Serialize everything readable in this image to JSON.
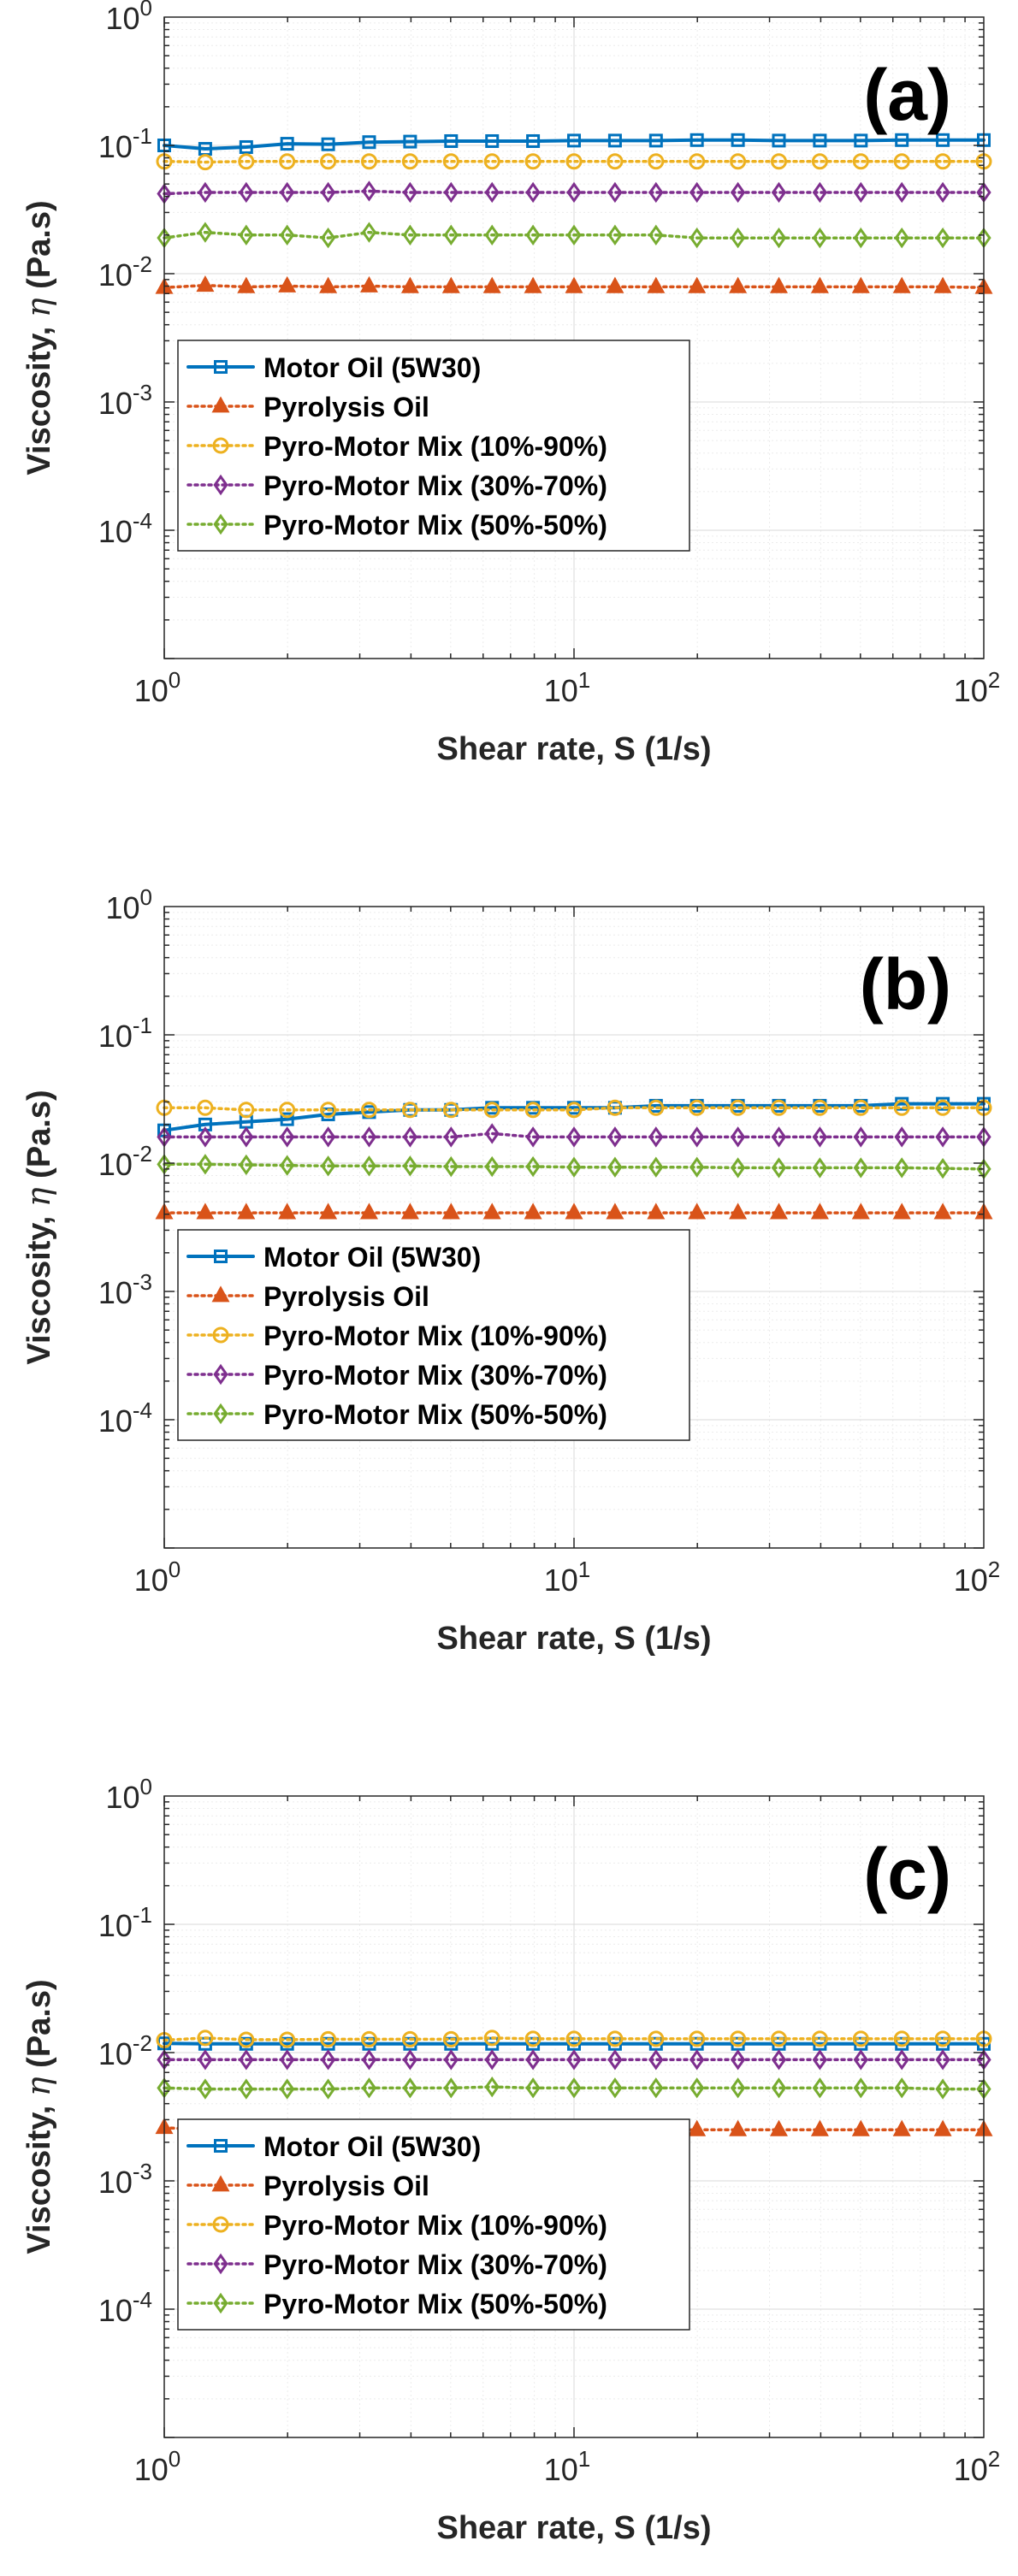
{
  "chart_data": [
    {
      "type": "line",
      "panel_label": "(a)",
      "xlabel": "Shear rate, S (1/s)",
      "ylabel_text": "Viscosity, ",
      "ylabel_symbol": "η",
      "ylabel_unit": " (Pa.s)",
      "xscale": "log",
      "yscale": "log",
      "xlim": [
        1,
        100
      ],
      "ylim": [
        1e-05,
        1
      ],
      "x_ticks": [
        {
          "base": "10",
          "exp": "0"
        },
        {
          "base": "10",
          "exp": "1"
        },
        {
          "base": "10",
          "exp": "2"
        }
      ],
      "y_ticks": [
        {
          "base": "10",
          "exp": "0"
        },
        {
          "base": "10",
          "exp": "-1"
        },
        {
          "base": "10",
          "exp": "-2"
        },
        {
          "base": "10",
          "exp": "-3"
        },
        {
          "base": "10",
          "exp": "-4"
        }
      ],
      "grid": true,
      "legend_position": "bottom-left",
      "x": [
        1,
        1.259,
        1.585,
        1.995,
        2.512,
        3.162,
        3.981,
        5.012,
        6.31,
        7.943,
        10,
        12.59,
        15.85,
        19.95,
        25.12,
        31.62,
        39.81,
        50.12,
        63.1,
        79.43,
        100
      ],
      "series": [
        {
          "name": "Motor Oil (5W30)",
          "color": "#0072BD",
          "marker": "square",
          "dash": "solid",
          "values": [
            0.1,
            0.094,
            0.097,
            0.103,
            0.102,
            0.106,
            0.107,
            0.108,
            0.108,
            0.108,
            0.109,
            0.109,
            0.109,
            0.11,
            0.11,
            0.109,
            0.109,
            0.109,
            0.11,
            0.11,
            0.11
          ]
        },
        {
          "name": "Pyrolysis Oil",
          "color": "#D95319",
          "marker": "triangle",
          "dash": "dotted",
          "values": [
            0.0078,
            0.0081,
            0.0079,
            0.008,
            0.0079,
            0.008,
            0.0079,
            0.0079,
            0.0079,
            0.0079,
            0.0079,
            0.0079,
            0.0079,
            0.0079,
            0.0079,
            0.0079,
            0.0079,
            0.0079,
            0.0079,
            0.0079,
            0.0078
          ]
        },
        {
          "name": "Pyro-Motor Mix (10%-90%)",
          "color": "#EDB120",
          "marker": "circle",
          "dash": "dotted",
          "values": [
            0.075,
            0.074,
            0.075,
            0.075,
            0.075,
            0.075,
            0.075,
            0.075,
            0.075,
            0.075,
            0.075,
            0.075,
            0.075,
            0.075,
            0.075,
            0.075,
            0.075,
            0.075,
            0.075,
            0.075,
            0.075
          ]
        },
        {
          "name": "Pyro-Motor Mix (30%-70%)",
          "color": "#7E2F8E",
          "marker": "diamond",
          "dash": "dotted",
          "values": [
            0.042,
            0.043,
            0.043,
            0.043,
            0.043,
            0.044,
            0.043,
            0.043,
            0.043,
            0.043,
            0.043,
            0.043,
            0.043,
            0.043,
            0.043,
            0.043,
            0.043,
            0.043,
            0.043,
            0.043,
            0.043
          ]
        },
        {
          "name": "Pyro-Motor Mix (50%-50%)",
          "color": "#77AC30",
          "marker": "diamond",
          "dash": "dotted",
          "values": [
            0.019,
            0.021,
            0.02,
            0.02,
            0.019,
            0.021,
            0.02,
            0.02,
            0.02,
            0.02,
            0.02,
            0.02,
            0.02,
            0.019,
            0.019,
            0.019,
            0.019,
            0.019,
            0.019,
            0.019,
            0.019
          ]
        }
      ]
    },
    {
      "type": "line",
      "panel_label": "(b)",
      "xlabel": "Shear rate, S (1/s)",
      "ylabel_text": "Viscosity, ",
      "ylabel_symbol": "η",
      "ylabel_unit": " (Pa.s)",
      "xscale": "log",
      "yscale": "log",
      "xlim": [
        1,
        100
      ],
      "ylim": [
        1e-05,
        1
      ],
      "x_ticks": [
        {
          "base": "10",
          "exp": "0"
        },
        {
          "base": "10",
          "exp": "1"
        },
        {
          "base": "10",
          "exp": "2"
        }
      ],
      "y_ticks": [
        {
          "base": "10",
          "exp": "0"
        },
        {
          "base": "10",
          "exp": "-1"
        },
        {
          "base": "10",
          "exp": "-2"
        },
        {
          "base": "10",
          "exp": "-3"
        },
        {
          "base": "10",
          "exp": "-4"
        }
      ],
      "grid": true,
      "legend_position": "bottom-left",
      "x": [
        1,
        1.259,
        1.585,
        1.995,
        2.512,
        3.162,
        3.981,
        5.012,
        6.31,
        7.943,
        10,
        12.59,
        15.85,
        19.95,
        25.12,
        31.62,
        39.81,
        50.12,
        63.1,
        79.43,
        100
      ],
      "series": [
        {
          "name": "Motor Oil (5W30)",
          "color": "#0072BD",
          "marker": "square",
          "dash": "solid",
          "values": [
            0.018,
            0.02,
            0.021,
            0.022,
            0.024,
            0.025,
            0.026,
            0.026,
            0.027,
            0.027,
            0.027,
            0.027,
            0.028,
            0.028,
            0.028,
            0.028,
            0.028,
            0.028,
            0.029,
            0.029,
            0.029
          ]
        },
        {
          "name": "Pyrolysis Oil",
          "color": "#D95319",
          "marker": "triangle",
          "dash": "dotted",
          "values": [
            0.0041,
            0.0041,
            0.0041,
            0.0041,
            0.0041,
            0.0041,
            0.0041,
            0.0041,
            0.0041,
            0.0041,
            0.0041,
            0.0041,
            0.0041,
            0.0041,
            0.0041,
            0.0041,
            0.0041,
            0.0041,
            0.0041,
            0.0041,
            0.0041
          ]
        },
        {
          "name": "Pyro-Motor Mix (10%-90%)",
          "color": "#EDB120",
          "marker": "circle",
          "dash": "dotted",
          "values": [
            0.027,
            0.027,
            0.026,
            0.026,
            0.026,
            0.026,
            0.026,
            0.026,
            0.026,
            0.026,
            0.026,
            0.027,
            0.027,
            0.027,
            0.027,
            0.027,
            0.027,
            0.027,
            0.027,
            0.027,
            0.027
          ]
        },
        {
          "name": "Pyro-Motor Mix (30%-70%)",
          "color": "#7E2F8E",
          "marker": "diamond",
          "dash": "dotted",
          "values": [
            0.016,
            0.016,
            0.016,
            0.016,
            0.016,
            0.016,
            0.016,
            0.016,
            0.017,
            0.016,
            0.016,
            0.016,
            0.016,
            0.016,
            0.016,
            0.016,
            0.016,
            0.016,
            0.016,
            0.016,
            0.016
          ]
        },
        {
          "name": "Pyro-Motor Mix (50%-50%)",
          "color": "#77AC30",
          "marker": "diamond",
          "dash": "dotted",
          "values": [
            0.0098,
            0.0098,
            0.0097,
            0.0096,
            0.0095,
            0.0095,
            0.0095,
            0.0094,
            0.0094,
            0.0094,
            0.0093,
            0.0093,
            0.0093,
            0.0093,
            0.0092,
            0.0092,
            0.0092,
            0.0092,
            0.0092,
            0.0091,
            0.009
          ]
        }
      ]
    },
    {
      "type": "line",
      "panel_label": "(c)",
      "xlabel": "Shear rate, S (1/s)",
      "ylabel_text": "Viscosity, ",
      "ylabel_symbol": "η",
      "ylabel_unit": " (Pa.s)",
      "xscale": "log",
      "yscale": "log",
      "xlim": [
        1,
        100
      ],
      "ylim": [
        1e-05,
        1
      ],
      "x_ticks": [
        {
          "base": "10",
          "exp": "0"
        },
        {
          "base": "10",
          "exp": "1"
        },
        {
          "base": "10",
          "exp": "2"
        }
      ],
      "y_ticks": [
        {
          "base": "10",
          "exp": "0"
        },
        {
          "base": "10",
          "exp": "-1"
        },
        {
          "base": "10",
          "exp": "-2"
        },
        {
          "base": "10",
          "exp": "-3"
        },
        {
          "base": "10",
          "exp": "-4"
        }
      ],
      "grid": true,
      "legend_position": "bottom-left",
      "x": [
        1,
        1.259,
        1.585,
        1.995,
        2.512,
        3.162,
        3.981,
        5.012,
        6.31,
        7.943,
        10,
        12.59,
        15.85,
        19.95,
        25.12,
        31.62,
        39.81,
        50.12,
        63.1,
        79.43,
        100
      ],
      "series": [
        {
          "name": "Motor Oil (5W30)",
          "color": "#0072BD",
          "marker": "square",
          "dash": "solid",
          "values": [
            0.0118,
            0.0117,
            0.0117,
            0.0117,
            0.0117,
            0.0117,
            0.0117,
            0.0117,
            0.0117,
            0.0117,
            0.0117,
            0.0117,
            0.0117,
            0.0117,
            0.0117,
            0.0117,
            0.0117,
            0.0117,
            0.0117,
            0.0117,
            0.0117
          ]
        },
        {
          "name": "Pyrolysis Oil",
          "color": "#D95319",
          "marker": "triangle",
          "dash": "dotted",
          "values": [
            0.0026,
            0.0025,
            0.0025,
            0.0025,
            0.0025,
            0.0025,
            0.0025,
            0.0025,
            0.0025,
            0.0025,
            0.0025,
            0.0025,
            0.0025,
            0.0025,
            0.0025,
            0.0025,
            0.0025,
            0.0025,
            0.0025,
            0.0025,
            0.0025
          ]
        },
        {
          "name": "Pyro-Motor Mix (10%-90%)",
          "color": "#EDB120",
          "marker": "circle",
          "dash": "dotted",
          "values": [
            0.0125,
            0.013,
            0.0126,
            0.0126,
            0.0127,
            0.0127,
            0.0127,
            0.0127,
            0.013,
            0.0128,
            0.0128,
            0.0128,
            0.0128,
            0.0128,
            0.0128,
            0.0128,
            0.0128,
            0.0128,
            0.0128,
            0.0128,
            0.0128
          ]
        },
        {
          "name": "Pyro-Motor Mix (30%-70%)",
          "color": "#7E2F8E",
          "marker": "diamond",
          "dash": "dotted",
          "values": [
            0.0088,
            0.0088,
            0.0088,
            0.0088,
            0.0088,
            0.0088,
            0.0088,
            0.0088,
            0.0088,
            0.0088,
            0.0088,
            0.0088,
            0.0088,
            0.0088,
            0.0088,
            0.0088,
            0.0088,
            0.0088,
            0.0088,
            0.0088,
            0.0088
          ]
        },
        {
          "name": "Pyro-Motor Mix (50%-50%)",
          "color": "#77AC30",
          "marker": "diamond",
          "dash": "dotted",
          "values": [
            0.0053,
            0.0052,
            0.0052,
            0.0052,
            0.0052,
            0.0053,
            0.0053,
            0.0053,
            0.0054,
            0.0053,
            0.0053,
            0.0053,
            0.0053,
            0.0053,
            0.0053,
            0.0053,
            0.0053,
            0.0053,
            0.0053,
            0.0052,
            0.0052
          ]
        }
      ]
    }
  ]
}
